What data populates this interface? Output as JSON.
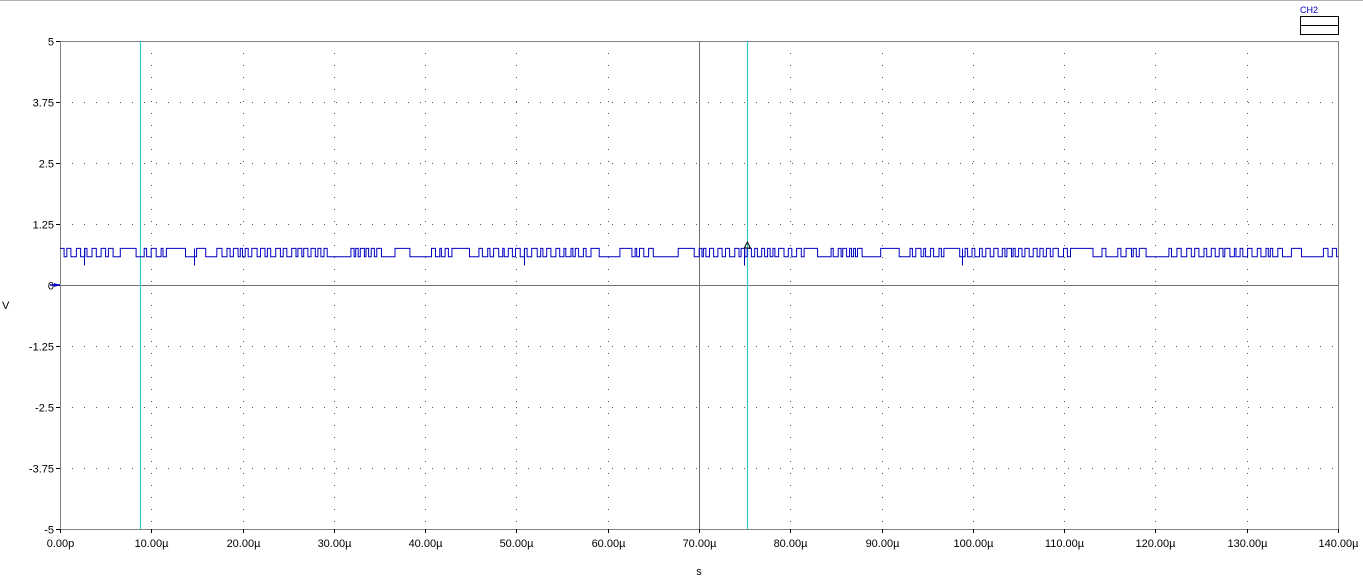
{
  "chart_data": {
    "type": "line",
    "title": "",
    "xlabel": "s",
    "ylabel": "V",
    "xlim": [
      0,
      140
    ],
    "ylim": [
      -5,
      5
    ],
    "grid": true,
    "legend_position": "top-right",
    "x_ticks": [
      {
        "value": 0,
        "label": "0.00p"
      },
      {
        "value": 10,
        "label": "10.00µ"
      },
      {
        "value": 20,
        "label": "20.00µ"
      },
      {
        "value": 30,
        "label": "30.00µ"
      },
      {
        "value": 40,
        "label": "40.00µ"
      },
      {
        "value": 50,
        "label": "50.00µ"
      },
      {
        "value": 60,
        "label": "60.00µ"
      },
      {
        "value": 70,
        "label": "70.00µ"
      },
      {
        "value": 80,
        "label": "80.00µ"
      },
      {
        "value": 90,
        "label": "90.00µ"
      },
      {
        "value": 100,
        "label": "100.00µ"
      },
      {
        "value": 110,
        "label": "110.00µ"
      },
      {
        "value": 120,
        "label": "120.00µ"
      },
      {
        "value": 130,
        "label": "130.00µ"
      },
      {
        "value": 140,
        "label": "140.00µ"
      }
    ],
    "y_ticks": [
      {
        "value": 5,
        "label": "5"
      },
      {
        "value": 3.75,
        "label": "3.75"
      },
      {
        "value": 2.5,
        "label": "2.5"
      },
      {
        "value": 1.25,
        "label": "1.25"
      },
      {
        "value": 0,
        "label": "0"
      },
      {
        "value": -1.25,
        "label": "-1.25"
      },
      {
        "value": -2.5,
        "label": "-2.5"
      },
      {
        "value": -3.75,
        "label": "-3.75"
      },
      {
        "value": -5,
        "label": "-5"
      }
    ],
    "cursors": [
      {
        "name": "cursor-1",
        "x": 8.8
      },
      {
        "name": "cursor-2",
        "x": 75.3
      }
    ],
    "series": [
      {
        "name": "CH2",
        "color": "#0000c0",
        "high": 0.75,
        "low": 0.58,
        "glitch_low": 0.4,
        "glitches": [
          2.6,
          14.7,
          50.8,
          74.9,
          98.8
        ],
        "marker": {
          "x": 75.3,
          "y": 0.82
        }
      }
    ],
    "colors": {
      "grid": "#555555",
      "center_axis": "#707070",
      "cursor": "#33cccc",
      "trace": "#0000c0",
      "ground_marker": "#0000c0"
    }
  }
}
